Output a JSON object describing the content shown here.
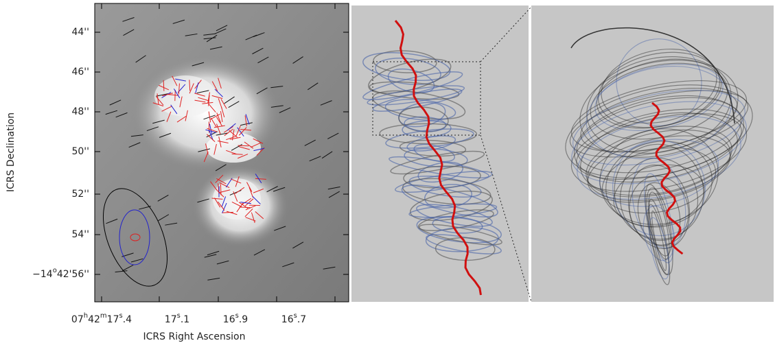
{
  "y_axis": {
    "title": "ICRS Declination",
    "ticks": [
      [
        {
          "text": "44''"
        }
      ],
      [
        {
          "text": "46''"
        }
      ],
      [
        {
          "text": "48''"
        }
      ],
      [
        {
          "text": "50''"
        }
      ],
      [
        {
          "text": "52''"
        }
      ],
      [
        {
          "text": "54''"
        }
      ],
      [
        {
          "text": "−14"
        },
        {
          "sup": "o"
        },
        {
          "text": "42'56''"
        }
      ]
    ]
  },
  "x_axis": {
    "title": "ICRS Right Ascension",
    "ticks": [
      [
        {
          "text": "07"
        },
        {
          "sup": "h"
        },
        {
          "text": "42"
        },
        {
          "sup": "m"
        },
        {
          "text": "17"
        },
        {
          "sup": "s"
        },
        {
          "text": ".4"
        }
      ],
      [
        {
          "text": "17"
        },
        {
          "sup": "s"
        },
        {
          "text": ".1"
        }
      ],
      [
        {
          "text": "16"
        },
        {
          "sup": "s"
        },
        {
          "text": ".9"
        }
      ],
      [
        {
          "text": "16"
        },
        {
          "sup": "s"
        },
        {
          "text": ".7"
        }
      ]
    ]
  }
}
